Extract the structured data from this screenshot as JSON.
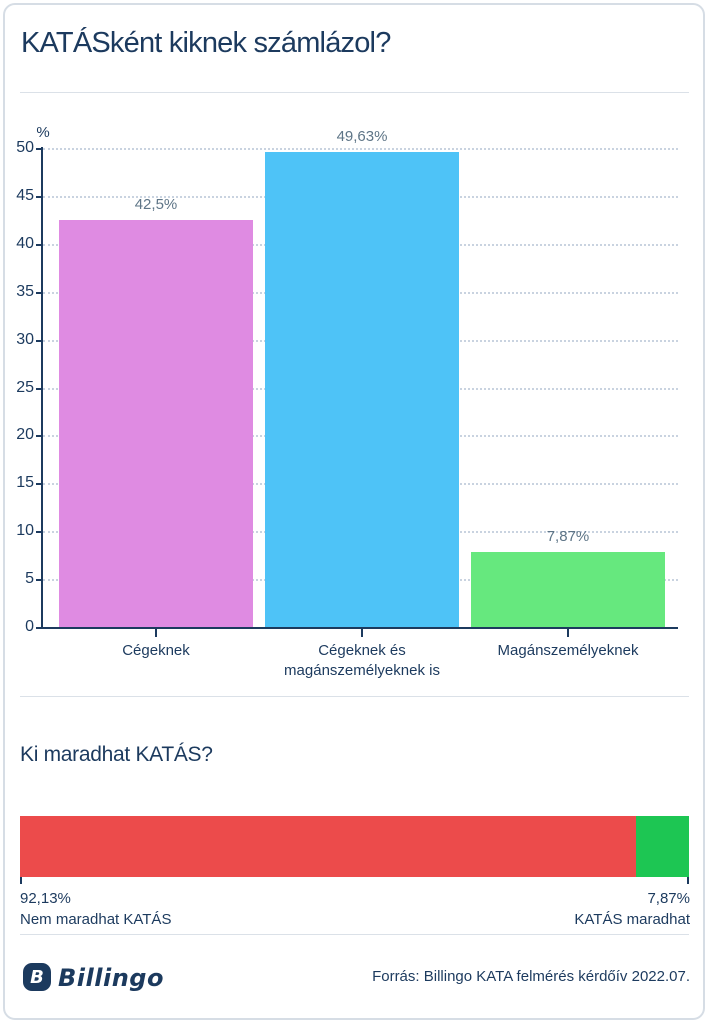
{
  "page": {
    "title": "KATÁSként kiknek számlázol?"
  },
  "section2": {
    "title": "Ki maradhat KATÁS?"
  },
  "footer": {
    "brand": "Billingo",
    "brand_mark": "B",
    "source": "Forrás: Billingo KATA felmérés kérdőív 2022.07."
  },
  "colors": {
    "navy": "#1c3a5e",
    "grid_dotted": "#c9d3e0",
    "divider": "#dbe1e8",
    "value_label": "#5e7587",
    "bar_pink": "#df8be2",
    "bar_blue": "#4ec3f7",
    "bar_light_green": "#66e87e",
    "bar_red": "#ec4b4b",
    "bar_dark_green": "#1dc653"
  },
  "chart_data": [
    {
      "type": "bar",
      "title": "KATÁSként kiknek számlázol?",
      "ylabel": "%",
      "ylim": [
        0,
        50
      ],
      "ytick_step": 5,
      "grid": "horizontal-dotted",
      "categories": [
        "Cégeknek",
        "Cégeknek és magánszemélyeknek is",
        "Magánszemélyeknek"
      ],
      "values": [
        42.5,
        49.63,
        7.87
      ],
      "value_labels": [
        "42,5%",
        "49,63%",
        "7,87%"
      ],
      "colors": [
        "#df8be2",
        "#4ec3f7",
        "#66e87e"
      ]
    },
    {
      "type": "bar",
      "orientation": "horizontal-stacked",
      "title": "Ki maradhat KATÁS?",
      "total": 100,
      "segments": [
        {
          "name": "Nem maradhat KATÁS",
          "value": 92.13,
          "label": "92,13%",
          "color": "#ec4b4b"
        },
        {
          "name": "KATÁS maradhat",
          "value": 7.87,
          "label": "7,87%",
          "color": "#1dc653"
        }
      ]
    }
  ]
}
